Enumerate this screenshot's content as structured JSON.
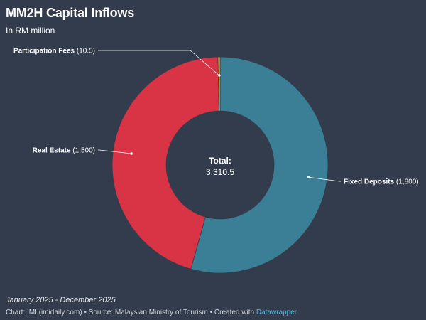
{
  "header": {
    "title": "MM2H Capital Inflows",
    "subtitle": "In RM million"
  },
  "chart_data": {
    "type": "pie",
    "donut": true,
    "title": "MM2H Capital Inflows",
    "subtitle": "In RM million",
    "slices": [
      {
        "label": "Fixed Deposits",
        "value": 1800,
        "display": "1,800",
        "color": "#3a7f96"
      },
      {
        "label": "Real Estate",
        "value": 1500,
        "display": "1,500",
        "color": "#d93446"
      },
      {
        "label": "Participation Fees",
        "value": 10.5,
        "display": "10.5",
        "color": "#e8c15a"
      }
    ],
    "center_label": "Total:",
    "center_value": "3,310.5",
    "legend": "none"
  },
  "footer": {
    "date_range": "January 2025 - December 2025",
    "credit_prefix": "Chart: IMI (imidaily.com) • Source: Malaysian Ministry of Tourism • Created with ",
    "credit_brand": "Datawrapper"
  }
}
